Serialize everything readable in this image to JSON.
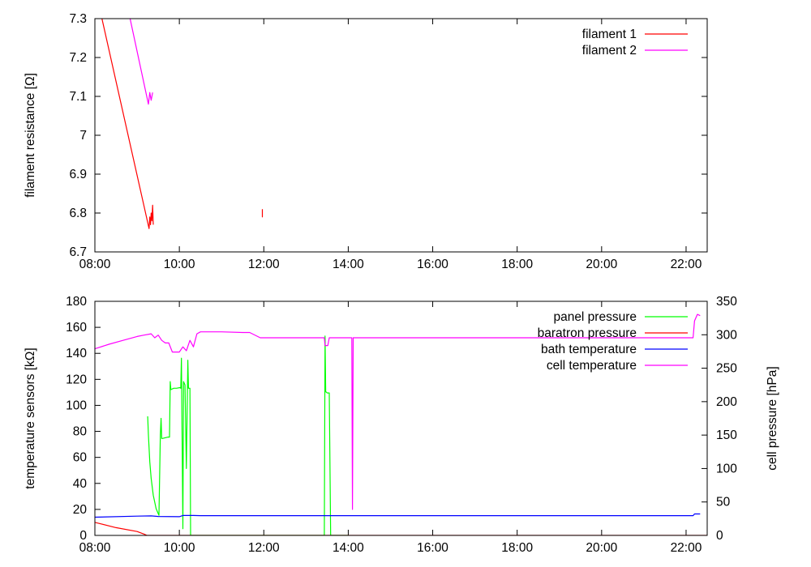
{
  "chart_data": [
    {
      "type": "line",
      "xlabel": "",
      "ylabel": "filament resistance [Ω]",
      "xlim": [
        "08:00",
        "22:30"
      ],
      "ylim": [
        6.7,
        7.3
      ],
      "x_ticks": [
        "08:00",
        "10:00",
        "12:00",
        "14:00",
        "16:00",
        "18:00",
        "20:00",
        "22:00"
      ],
      "y_ticks": [
        "6.7",
        "6.8",
        "6.9",
        "7",
        "7.1",
        "7.2",
        "7.3"
      ],
      "legend_position": "top-right",
      "series": [
        {
          "name": "filament 1",
          "color": "#ff0000",
          "segments": [
            [
              [
                "08:10",
                7.3
              ],
              [
                "09:17",
                6.76
              ],
              [
                "09:18",
                6.79
              ],
              [
                "09:19",
                6.77
              ],
              [
                "09:20",
                6.8
              ],
              [
                "09:21",
                6.78
              ],
              [
                "09:22",
                6.82
              ],
              [
                "09:23",
                6.77
              ]
            ],
            [
              [
                "11:58",
                6.8
              ],
              [
                "11:58",
                6.79
              ],
              [
                "11:58",
                6.81
              ]
            ]
          ]
        },
        {
          "name": "filament 2",
          "color": "#ff00ff",
          "segments": [
            [
              [
                "08:50",
                7.3
              ],
              [
                "09:16",
                7.08
              ],
              [
                "09:18",
                7.11
              ],
              [
                "09:20",
                7.09
              ],
              [
                "09:22",
                7.11
              ]
            ]
          ]
        }
      ]
    },
    {
      "type": "line",
      "xlabel": "",
      "ylabel": "temperature sensors [kΩ]",
      "y2label": "cell pressure [hPa]",
      "xlim": [
        "08:00",
        "22:30"
      ],
      "ylim": [
        0,
        180
      ],
      "y2lim": [
        0,
        350
      ],
      "x_ticks": [
        "08:00",
        "10:00",
        "12:00",
        "14:00",
        "16:00",
        "18:00",
        "20:00",
        "22:00"
      ],
      "y_ticks": [
        "0",
        "20",
        "40",
        "60",
        "80",
        "100",
        "120",
        "140",
        "160",
        "180"
      ],
      "y2_ticks": [
        "0",
        "50",
        "100",
        "150",
        "200",
        "250",
        "300",
        "350"
      ],
      "legend_position": "top-right",
      "series": [
        {
          "name": "panel pressure",
          "color": "#00ff00",
          "axis": "y2",
          "points": [
            [
              "09:15",
              178
            ],
            [
              "09:16",
              150
            ],
            [
              "09:18",
              110
            ],
            [
              "09:20",
              85
            ],
            [
              "09:23",
              60
            ],
            [
              "09:27",
              40
            ],
            [
              "09:31",
              30
            ],
            [
              "09:33",
              150
            ],
            [
              "09:34",
              175
            ],
            [
              "09:35",
              145
            ],
            [
              "09:36",
              145
            ],
            [
              "09:40",
              146
            ],
            [
              "09:44",
              147
            ],
            [
              "09:46",
              147
            ],
            [
              "09:47",
              230
            ],
            [
              "09:48",
              218
            ],
            [
              "09:52",
              220
            ],
            [
              "09:56",
              220
            ],
            [
              "10:01",
              221
            ],
            [
              "10:02",
              220
            ],
            [
              "10:03",
              265
            ],
            [
              "10:05",
              10
            ],
            [
              "10:06",
              230
            ],
            [
              "10:08",
              225
            ],
            [
              "10:10",
              100
            ],
            [
              "10:12",
              262
            ],
            [
              "10:13",
              220
            ],
            [
              "10:15",
              220
            ],
            [
              "10:16",
              0
            ],
            [
              "10:20",
              0
            ],
            [
              "13:20",
              0
            ],
            [
              "13:26",
              0
            ],
            [
              "13:27",
              298
            ],
            [
              "13:28",
              215
            ],
            [
              "13:30",
              213
            ],
            [
              "13:33",
              213
            ],
            [
              "13:35",
              0
            ],
            [
              "14:00",
              0
            ]
          ]
        },
        {
          "name": "baratron pressure",
          "color": "#ff0000",
          "axis": "y",
          "points": [
            [
              "08:00",
              10
            ],
            [
              "08:30",
              6
            ],
            [
              "09:00",
              3
            ],
            [
              "09:10",
              1
            ],
            [
              "09:14",
              0
            ],
            [
              "09:20",
              0
            ],
            [
              "10:15",
              0
            ],
            [
              "10:20",
              0
            ],
            [
              "13:33",
              0
            ],
            [
              "13:36",
              0
            ],
            [
              "22:30",
              0
            ]
          ]
        },
        {
          "name": "bath temperature",
          "color": "#0000ff",
          "axis": "y",
          "points": [
            [
              "08:00",
              14
            ],
            [
              "09:00",
              14.8
            ],
            [
              "09:20",
              15
            ],
            [
              "09:30",
              14.6
            ],
            [
              "10:00",
              14.4
            ],
            [
              "10:05",
              15.3
            ],
            [
              "10:20",
              15.3
            ],
            [
              "10:30",
              15.2
            ],
            [
              "12:00",
              15.2
            ],
            [
              "14:00",
              15.2
            ],
            [
              "16:00",
              15.2
            ],
            [
              "18:00",
              15.2
            ],
            [
              "20:00",
              15.2
            ],
            [
              "22:10",
              15.2
            ],
            [
              "22:12",
              16.5
            ],
            [
              "22:20",
              16.5
            ]
          ]
        },
        {
          "name": "cell temperature",
          "color": "#ff00ff",
          "axis": "y",
          "points": [
            [
              "08:00",
              143.5
            ],
            [
              "08:20",
              147
            ],
            [
              "08:40",
              150
            ],
            [
              "09:00",
              153
            ],
            [
              "09:10",
              154
            ],
            [
              "09:20",
              155
            ],
            [
              "09:25",
              152
            ],
            [
              "09:30",
              154
            ],
            [
              "09:35",
              150
            ],
            [
              "09:40",
              148
            ],
            [
              "09:45",
              148
            ],
            [
              "09:50",
              141
            ],
            [
              "10:00",
              141
            ],
            [
              "10:05",
              145
            ],
            [
              "10:10",
              142
            ],
            [
              "10:15",
              150
            ],
            [
              "10:20",
              145
            ],
            [
              "10:25",
              155
            ],
            [
              "10:30",
              156.5
            ],
            [
              "11:00",
              156.5
            ],
            [
              "11:30",
              156
            ],
            [
              "11:40",
              156
            ],
            [
              "11:55",
              152
            ],
            [
              "12:00",
              152
            ],
            [
              "13:00",
              152
            ],
            [
              "13:20",
              152
            ],
            [
              "13:26",
              152
            ],
            [
              "13:27",
              146
            ],
            [
              "13:31",
              146
            ],
            [
              "13:33",
              152
            ],
            [
              "14:00",
              152
            ],
            [
              "14:05",
              152
            ],
            [
              "14:06",
              20
            ],
            [
              "14:07",
              152
            ],
            [
              "15:00",
              152
            ],
            [
              "16:00",
              152
            ],
            [
              "17:00",
              152
            ],
            [
              "18:00",
              152
            ],
            [
              "19:00",
              152
            ],
            [
              "20:00",
              152
            ],
            [
              "21:00",
              152
            ],
            [
              "22:00",
              152
            ],
            [
              "22:10",
              152
            ],
            [
              "22:12",
              165
            ],
            [
              "22:16",
              170
            ],
            [
              "22:20",
              169
            ]
          ]
        }
      ]
    }
  ]
}
